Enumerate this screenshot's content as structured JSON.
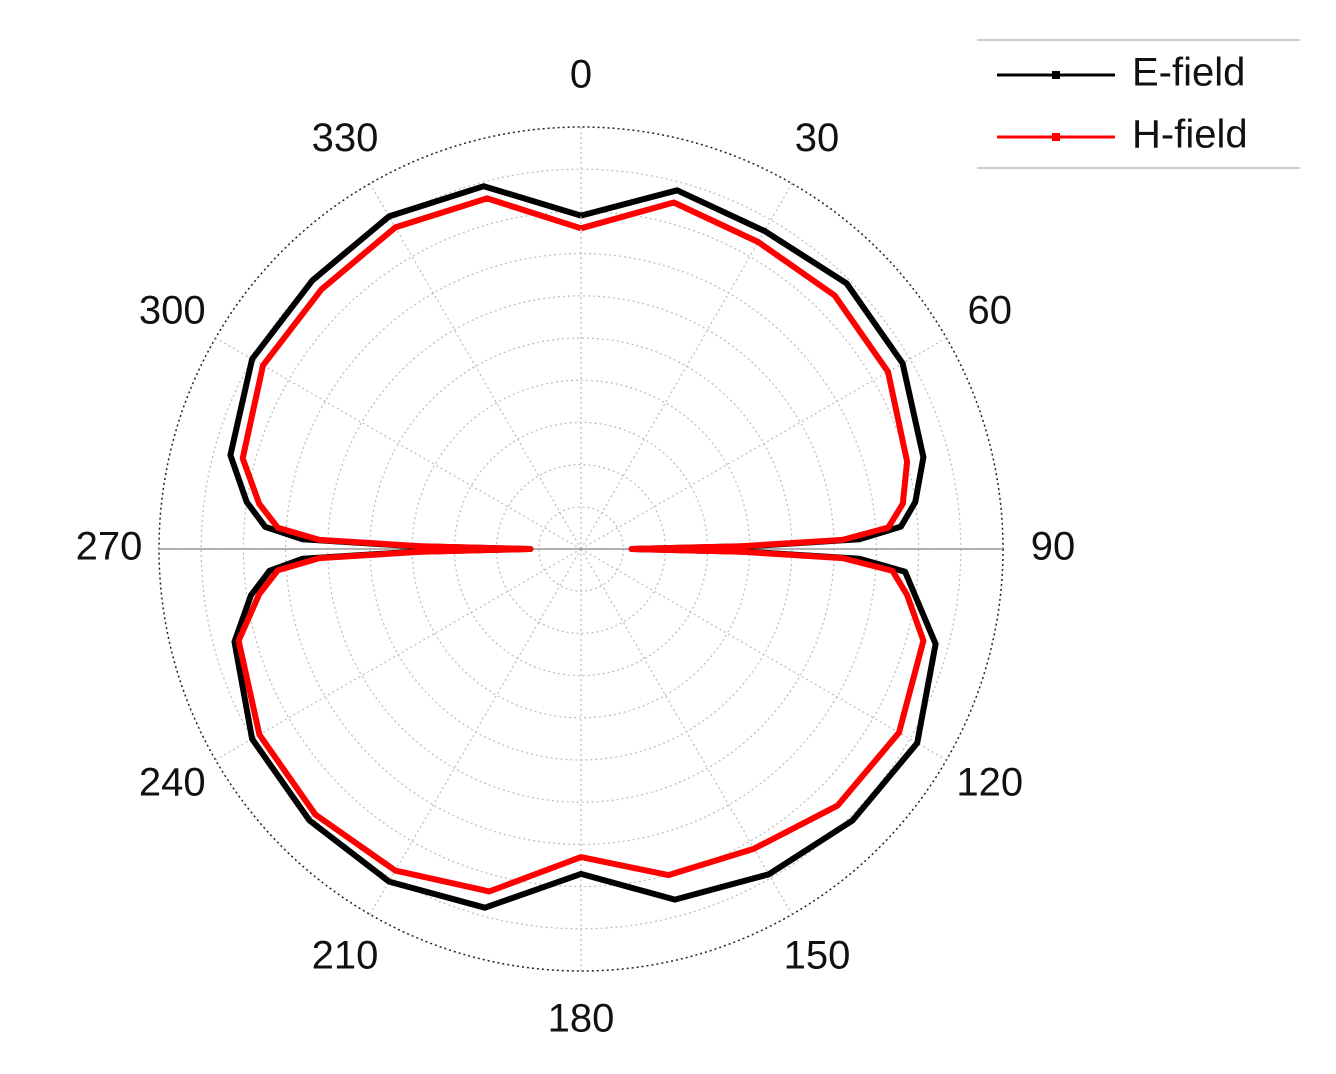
{
  "chart_data": {
    "type": "polar",
    "thetaticks": [
      0,
      30,
      60,
      90,
      120,
      150,
      180,
      210,
      240,
      270,
      300,
      330
    ],
    "rlim": [
      0,
      1
    ],
    "rticks": [
      0.1,
      0.2,
      0.3,
      0.4,
      0.5,
      0.6,
      0.7,
      0.8,
      0.9
    ],
    "theta": [
      0,
      15,
      30,
      45,
      60,
      75,
      82,
      86,
      88,
      89,
      90,
      91,
      92,
      94,
      98,
      105,
      120,
      135,
      150,
      165,
      180,
      195,
      210,
      225,
      240,
      255,
      262,
      266,
      268,
      269,
      270,
      271,
      272,
      274,
      278,
      285,
      300,
      315,
      330,
      345,
      360
    ],
    "series": [
      {
        "name": "E-field",
        "color": "#000000",
        "values": [
          0.79,
          0.88,
          0.87,
          0.89,
          0.88,
          0.84,
          0.8,
          0.76,
          0.66,
          0.4,
          0.12,
          0.4,
          0.66,
          0.77,
          0.8,
          0.87,
          0.92,
          0.91,
          0.89,
          0.86,
          0.77,
          0.88,
          0.91,
          0.91,
          0.9,
          0.85,
          0.79,
          0.74,
          0.66,
          0.4,
          0.12,
          0.4,
          0.66,
          0.75,
          0.8,
          0.86,
          0.9,
          0.9,
          0.91,
          0.89,
          0.79
        ]
      },
      {
        "name": "H-field",
        "color": "#ff0000",
        "values": [
          0.76,
          0.85,
          0.84,
          0.85,
          0.84,
          0.8,
          0.77,
          0.73,
          0.62,
          0.38,
          0.12,
          0.38,
          0.62,
          0.74,
          0.78,
          0.84,
          0.87,
          0.86,
          0.82,
          0.8,
          0.73,
          0.84,
          0.88,
          0.89,
          0.88,
          0.84,
          0.77,
          0.72,
          0.62,
          0.38,
          0.12,
          0.38,
          0.62,
          0.72,
          0.77,
          0.83,
          0.87,
          0.87,
          0.88,
          0.86,
          0.76
        ]
      }
    ],
    "legend": "upper right"
  }
}
